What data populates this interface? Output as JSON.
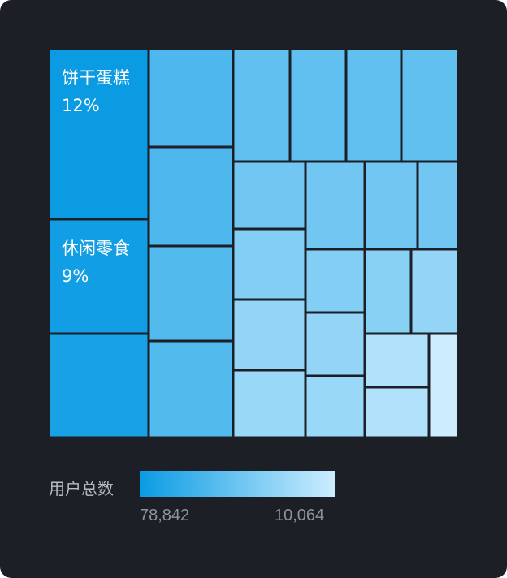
{
  "chart_data": {
    "type": "treemap",
    "value_label": "用户总数",
    "colors": {
      "max": "#0a9be3",
      "min": "#cdedff",
      "background": "#1c1f26",
      "label": "#ffffff"
    },
    "scale": {
      "max": 78842,
      "min": 10064,
      "max_label": "78,842",
      "min_label": "10,064"
    },
    "nodes": [
      {
        "name": "饼干蛋糕",
        "percent": "12%",
        "value": 78842
      },
      {
        "name": "休闲零食",
        "percent": "9%",
        "value": 76000
      },
      {
        "name": "",
        "value": 74000
      },
      {
        "name": "",
        "value": 55000
      },
      {
        "name": "",
        "value": 55000
      },
      {
        "name": "",
        "value": 53000
      },
      {
        "name": "",
        "value": 53000
      },
      {
        "name": "",
        "value": 48000
      },
      {
        "name": "",
        "value": 48000
      },
      {
        "name": "",
        "value": 48000
      },
      {
        "name": "",
        "value": 48000
      },
      {
        "name": "",
        "value": 42000
      },
      {
        "name": "",
        "value": 42000
      },
      {
        "name": "",
        "value": 42000
      },
      {
        "name": "",
        "value": 42000
      },
      {
        "name": "",
        "value": 36000
      },
      {
        "name": "",
        "value": 36000
      },
      {
        "name": "",
        "value": 34000
      },
      {
        "name": "",
        "value": 30000
      },
      {
        "name": "",
        "value": 30000
      },
      {
        "name": "",
        "value": 30000
      },
      {
        "name": "",
        "value": 28000
      },
      {
        "name": "",
        "value": 28000
      },
      {
        "name": "",
        "value": 20000
      },
      {
        "name": "",
        "value": 20000
      },
      {
        "name": "",
        "value": 10064
      }
    ]
  }
}
